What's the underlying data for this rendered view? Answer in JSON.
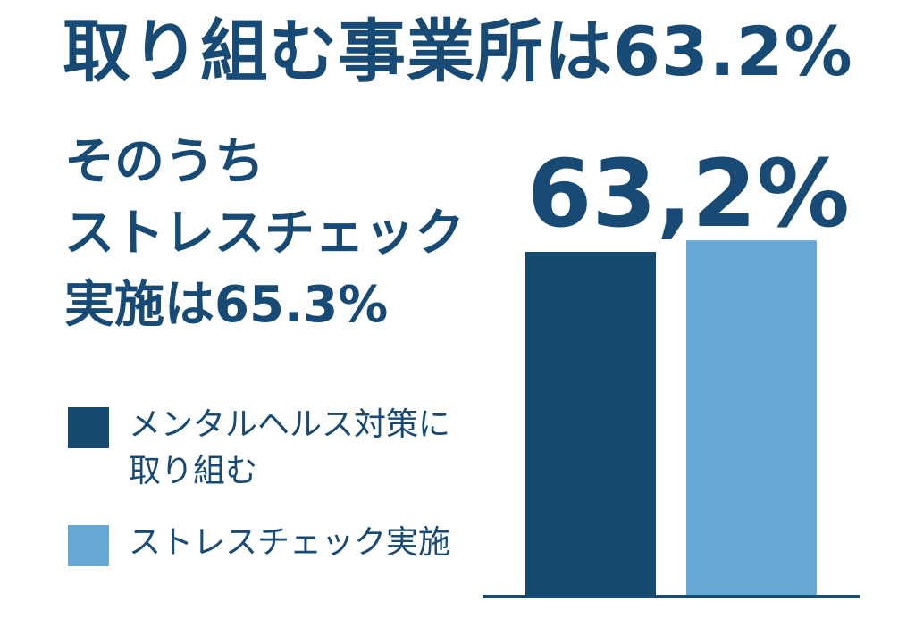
{
  "headline": "取り組む事業所は63.2%",
  "subtext": [
    "そのうち",
    "ストレスチェック",
    "実施は65.3%"
  ],
  "big_label": "63,2%",
  "legend": [
    {
      "label_lines": [
        "メンタルヘルス対策に",
        "取り組む"
      ],
      "color": "#144a70"
    },
    {
      "label_lines": [
        "ストレスチェック実施"
      ],
      "color": "#66a8d4"
    }
  ],
  "colors": {
    "text": "#174a74",
    "axis": "#174a74"
  },
  "chart_data": {
    "type": "bar",
    "categories": [
      "メンタルヘルス対策に取り組む",
      "ストレスチェック実施"
    ],
    "values": [
      63.2,
      65.3
    ],
    "title": "",
    "xlabel": "",
    "ylabel": "",
    "ylim": [
      0,
      70
    ],
    "grid": false,
    "legend_position": "left",
    "colors": [
      "#144a70",
      "#66a8d4"
    ]
  }
}
